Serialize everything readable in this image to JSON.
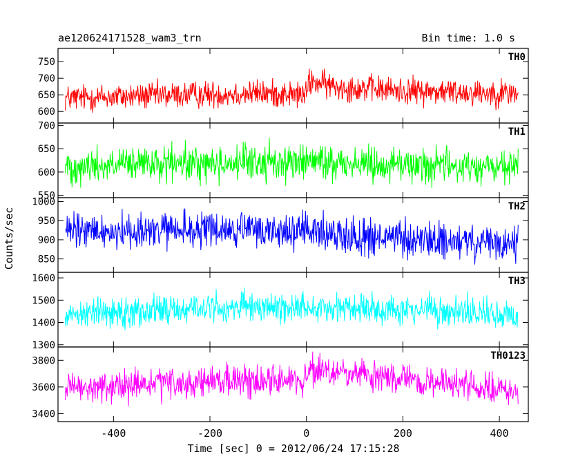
{
  "header": {
    "title": "ae120624171528_wam3_trn",
    "bin_time": "Bin time: 1.0 s"
  },
  "chart_data": {
    "type": "line",
    "xlabel": "Time [sec] 0 = 2012/06/24 17:15:28",
    "ylabel": "Counts/sec",
    "xlim": [
      -515,
      460
    ],
    "x_ticks": [
      -400,
      -200,
      0,
      200,
      400
    ],
    "x_range": [
      -500,
      439
    ],
    "bin_time": 1.0,
    "panels": [
      {
        "name": "TH0",
        "color": "#ff0000",
        "ylim": [
          565,
          790
        ],
        "y_ticks": [
          600,
          650,
          700,
          750
        ],
        "mean_profile": [
          [
            -500,
            640
          ],
          [
            -300,
            648
          ],
          [
            -100,
            655
          ],
          [
            0,
            650
          ],
          [
            5,
            690
          ],
          [
            60,
            675
          ],
          [
            200,
            662
          ],
          [
            439,
            655
          ]
        ],
        "noise_amplitude": 30
      },
      {
        "name": "TH1",
        "color": "#00ff00",
        "ylim": [
          545,
          705
        ],
        "y_ticks": [
          550,
          600,
          650,
          700
        ],
        "mean_profile": [
          [
            -500,
            612
          ],
          [
            -200,
            618
          ],
          [
            0,
            622
          ],
          [
            200,
            616
          ],
          [
            439,
            608
          ]
        ],
        "noise_amplitude": 28
      },
      {
        "name": "TH2",
        "color": "#0000ff",
        "ylim": [
          815,
          1010
        ],
        "y_ticks": [
          850,
          900,
          950,
          1000
        ],
        "mean_profile": [
          [
            -500,
            920
          ],
          [
            -200,
            925
          ],
          [
            0,
            922
          ],
          [
            140,
            905
          ],
          [
            439,
            885
          ]
        ],
        "noise_amplitude": 35
      },
      {
        "name": "TH3",
        "color": "#00ffff",
        "ylim": [
          1290,
          1625
        ],
        "y_ticks": [
          1300,
          1400,
          1500,
          1600
        ],
        "mean_profile": [
          [
            -500,
            1440
          ],
          [
            -200,
            1465
          ],
          [
            0,
            1470
          ],
          [
            200,
            1460
          ],
          [
            439,
            1430
          ]
        ],
        "noise_amplitude": 50
      },
      {
        "name": "TH0123",
        "color": "#ff00ff",
        "ylim": [
          3340,
          3900
        ],
        "y_ticks": [
          3400,
          3600,
          3800
        ],
        "mean_profile": [
          [
            -500,
            3580
          ],
          [
            -300,
            3620
          ],
          [
            -100,
            3650
          ],
          [
            0,
            3660
          ],
          [
            10,
            3720
          ],
          [
            100,
            3690
          ],
          [
            250,
            3640
          ],
          [
            439,
            3560
          ]
        ],
        "noise_amplitude": 85
      }
    ]
  }
}
